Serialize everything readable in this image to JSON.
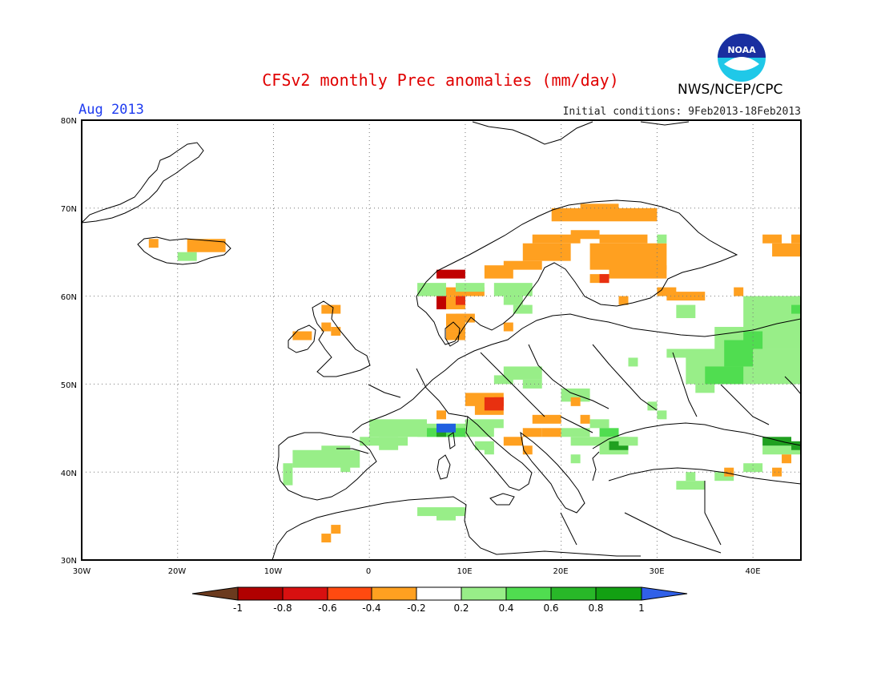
{
  "header": {
    "title": "CFSv2 monthly Prec anomalies (mm/day)",
    "month": "Aug 2013",
    "initial_conditions": "Initial conditions: 9Feb2013-18Feb2013",
    "agency": "NWS/NCEP/CPC",
    "logo_text": "NOAA"
  },
  "map": {
    "lat_labels": [
      "80N",
      "70N",
      "60N",
      "50N",
      "40N",
      "30N"
    ],
    "lon_labels": [
      "30W",
      "20W",
      "10W",
      "0",
      "10E",
      "20E",
      "30E",
      "40E"
    ],
    "lat_range": [
      30,
      80
    ],
    "lon_range": [
      -30,
      45
    ],
    "grid": "dotted"
  },
  "colorbar": {
    "labels": [
      "-1",
      "-0.8",
      "-0.6",
      "-0.4",
      "-0.2",
      "0.2",
      "0.4",
      "0.6",
      "0.8",
      "1"
    ],
    "colors": [
      "#6b3a1e",
      "#b00000",
      "#d81010",
      "#ff4a10",
      "#ffa020",
      "#ffffff",
      "#98ee88",
      "#50dd50",
      "#28b828",
      "#12a012",
      "#3060e8"
    ]
  },
  "anomaly_colors": {
    "orange": "#ffa020",
    "red": "#e83010",
    "darkred": "#c00000",
    "lightgreen": "#98ee88",
    "green": "#50dd50",
    "darkgreen": "#20a020",
    "blue": "#2060e0"
  }
}
